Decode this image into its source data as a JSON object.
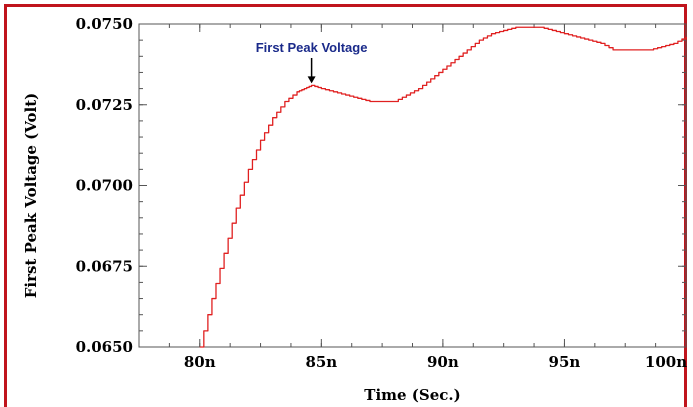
{
  "chart_data": {
    "type": "line",
    "xlabel": "Time (Sec.)",
    "ylabel": "First Peak Voltage (Volt)",
    "xlim": [
      77.5,
      100
    ],
    "ylim": [
      0.065,
      0.075
    ],
    "x_ticks": [
      80,
      85,
      90,
      95,
      100
    ],
    "x_tick_labels": [
      "80n",
      "85n",
      "90n",
      "95n",
      "100n"
    ],
    "y_ticks": [
      0.065,
      0.0675,
      0.07,
      0.0725,
      0.075
    ],
    "y_tick_labels": [
      "0.0650",
      "0.0675",
      "0.0700",
      "0.0725",
      "0.0750"
    ],
    "grid": false,
    "series": [
      {
        "color": "#e02020",
        "x": [
          80.0,
          80.5,
          81.0,
          81.5,
          82.0,
          82.5,
          83.0,
          83.5,
          84.0,
          84.3,
          84.6,
          85.0,
          85.5,
          86.0,
          86.5,
          87.0,
          87.5,
          88.0,
          88.5,
          89.0,
          89.5,
          90.0,
          90.5,
          91.0,
          91.5,
          92.0,
          92.5,
          93.0,
          93.5,
          94.0,
          94.5,
          95.0,
          95.5,
          96.0,
          96.5,
          97.0,
          97.5,
          98.0,
          98.5,
          99.0,
          99.5,
          100.0
        ],
        "y": [
          0.065,
          0.0665,
          0.0679,
          0.0693,
          0.0705,
          0.0714,
          0.0721,
          0.0726,
          0.0729,
          0.073,
          0.0731,
          0.073,
          0.0729,
          0.0728,
          0.0727,
          0.0726,
          0.0726,
          0.0726,
          0.0728,
          0.073,
          0.0733,
          0.0736,
          0.0739,
          0.0742,
          0.0745,
          0.0747,
          0.0748,
          0.0749,
          0.0749,
          0.0749,
          0.0748,
          0.0747,
          0.0746,
          0.0745,
          0.0744,
          0.0742,
          0.0742,
          0.0742,
          0.0742,
          0.0743,
          0.0744,
          0.0746
        ]
      }
    ],
    "annotations": [
      {
        "text": "First Peak Voltage",
        "x": 84.6,
        "y": 0.0731
      }
    ]
  }
}
